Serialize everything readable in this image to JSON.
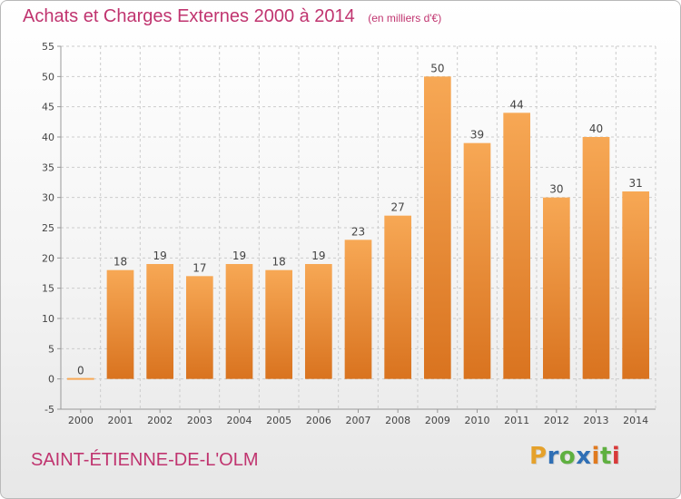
{
  "title": "Achats et Charges Externes 2000 à 2014",
  "unit_note": "(en milliers d'€)",
  "commune": "SAINT-ÉTIENNE-DE-L'OLM",
  "logo": {
    "text": "Proxiti",
    "letter_colors": [
      "#e5a12b",
      "#2f6fb5",
      "#5fb040",
      "#2f6fb5",
      "#e07a1f",
      "#5fb040",
      "#d83a3a"
    ]
  },
  "colors": {
    "bar_top": "#f7a855",
    "bar_bottom": "#d9731f",
    "grid": "#cccccc",
    "title": "#c0346f"
  },
  "chart_data": {
    "type": "bar",
    "title": "Achats et Charges Externes 2000 à 2014",
    "subtitle": "(en milliers d'€)",
    "categories": [
      "2000",
      "2001",
      "2002",
      "2003",
      "2004",
      "2005",
      "2006",
      "2007",
      "2008",
      "2009",
      "2010",
      "2011",
      "2012",
      "2013",
      "2014"
    ],
    "values": [
      0,
      18,
      19,
      17,
      19,
      18,
      19,
      23,
      27,
      50,
      39,
      44,
      30,
      40,
      31
    ],
    "ylim": [
      -5,
      55
    ],
    "yticks": [
      -5,
      0,
      5,
      10,
      15,
      20,
      25,
      30,
      35,
      40,
      45,
      50,
      55
    ],
    "grid": true,
    "data_labels": true
  }
}
